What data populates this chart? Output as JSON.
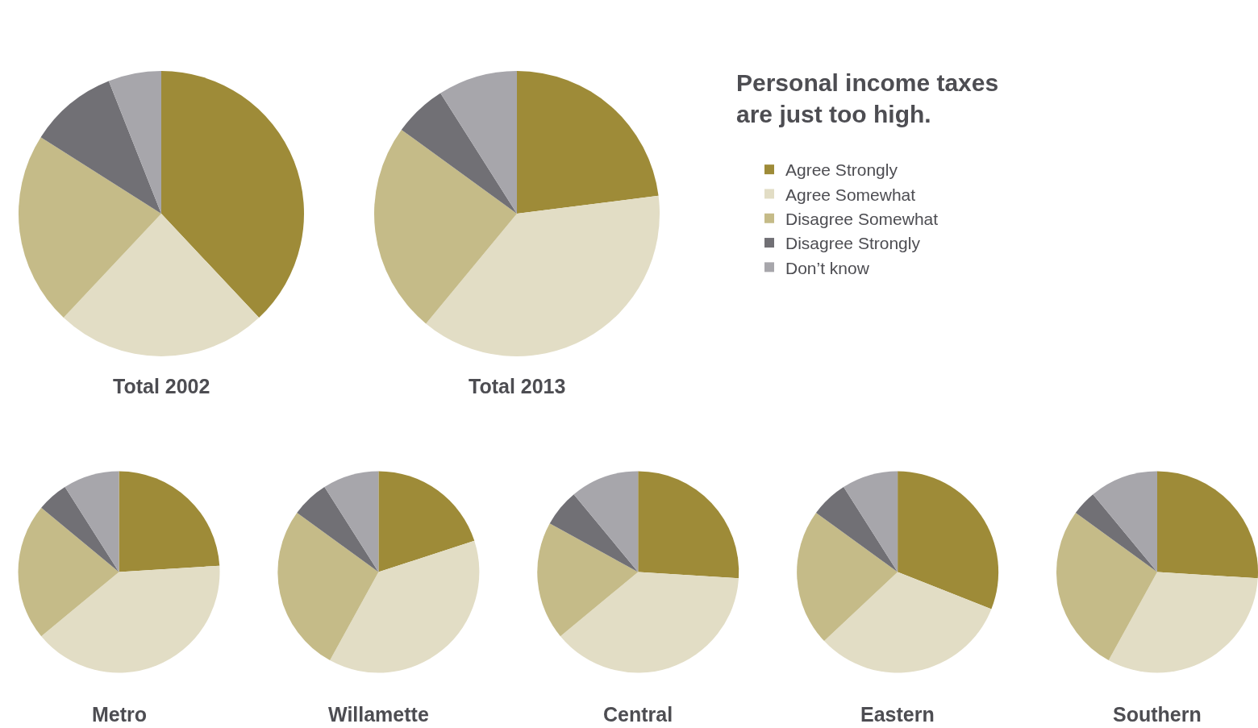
{
  "chart_data": [
    {
      "type": "pie",
      "title": "Total 2002",
      "categories": [
        null,
        null,
        null,
        null,
        null
      ],
      "values": [
        38,
        24,
        22,
        10,
        6
      ],
      "colors": [
        "#9e8b38",
        "#e2ddc5",
        "#c5bb88",
        "#717075",
        "#a7a6ab"
      ]
    },
    {
      "type": "pie",
      "title": "Total 2013",
      "categories": [
        "Agree Strongly",
        "Agree Somewhat",
        "Disagree Somewhat",
        "Disagree Strongly",
        "Don’t know"
      ],
      "values": [
        23,
        38,
        24,
        6,
        9
      ],
      "colors": [
        "#9e8b38",
        "#e2ddc5",
        "#c5bb88",
        "#717075",
        "#a7a6ab"
      ],
      "legend": "right"
    },
    {
      "type": "other",
      "title": "Personal income taxes are just too high."
    },
    {
      "type": "pie",
      "title": "Metro",
      "categories": [
        null,
        null,
        null,
        null,
        null
      ],
      "values": [
        24,
        40,
        22,
        5,
        9
      ],
      "colors": [
        "#9e8b38",
        "#e2ddc5",
        "#c5bb88",
        "#717075",
        "#a7a6ab"
      ]
    },
    {
      "type": "pie",
      "title": "Willamette",
      "categories": [
        null,
        null,
        null,
        null,
        null
      ],
      "values": [
        20,
        38,
        27,
        6,
        9
      ],
      "colors": [
        "#9e8b38",
        "#e2ddc5",
        "#c5bb88",
        "#717075",
        "#a7a6ab"
      ]
    },
    {
      "type": "pie",
      "title": "Central",
      "categories": [
        null,
        null,
        null,
        null,
        null
      ],
      "values": [
        26,
        38,
        19,
        6,
        11
      ],
      "colors": [
        "#9e8b38",
        "#e2ddc5",
        "#c5bb88",
        "#717075",
        "#a7a6ab"
      ]
    },
    {
      "type": "pie",
      "title": "Eastern",
      "categories": [
        null,
        null,
        null,
        null,
        null
      ],
      "values": [
        31,
        32,
        22,
        6,
        9
      ],
      "colors": [
        "#9e8b38",
        "#e2ddc5",
        "#c5bb88",
        "#717075",
        "#a7a6ab"
      ]
    },
    {
      "type": "pie",
      "title": "Southern",
      "categories": [
        null,
        null,
        null,
        null,
        null
      ],
      "values": [
        26,
        32,
        27,
        4,
        11
      ],
      "colors": [
        "#9e8b38",
        "#e2ddc5",
        "#c5bb88",
        "#717075",
        "#a7a6ab"
      ]
    }
  ]
}
